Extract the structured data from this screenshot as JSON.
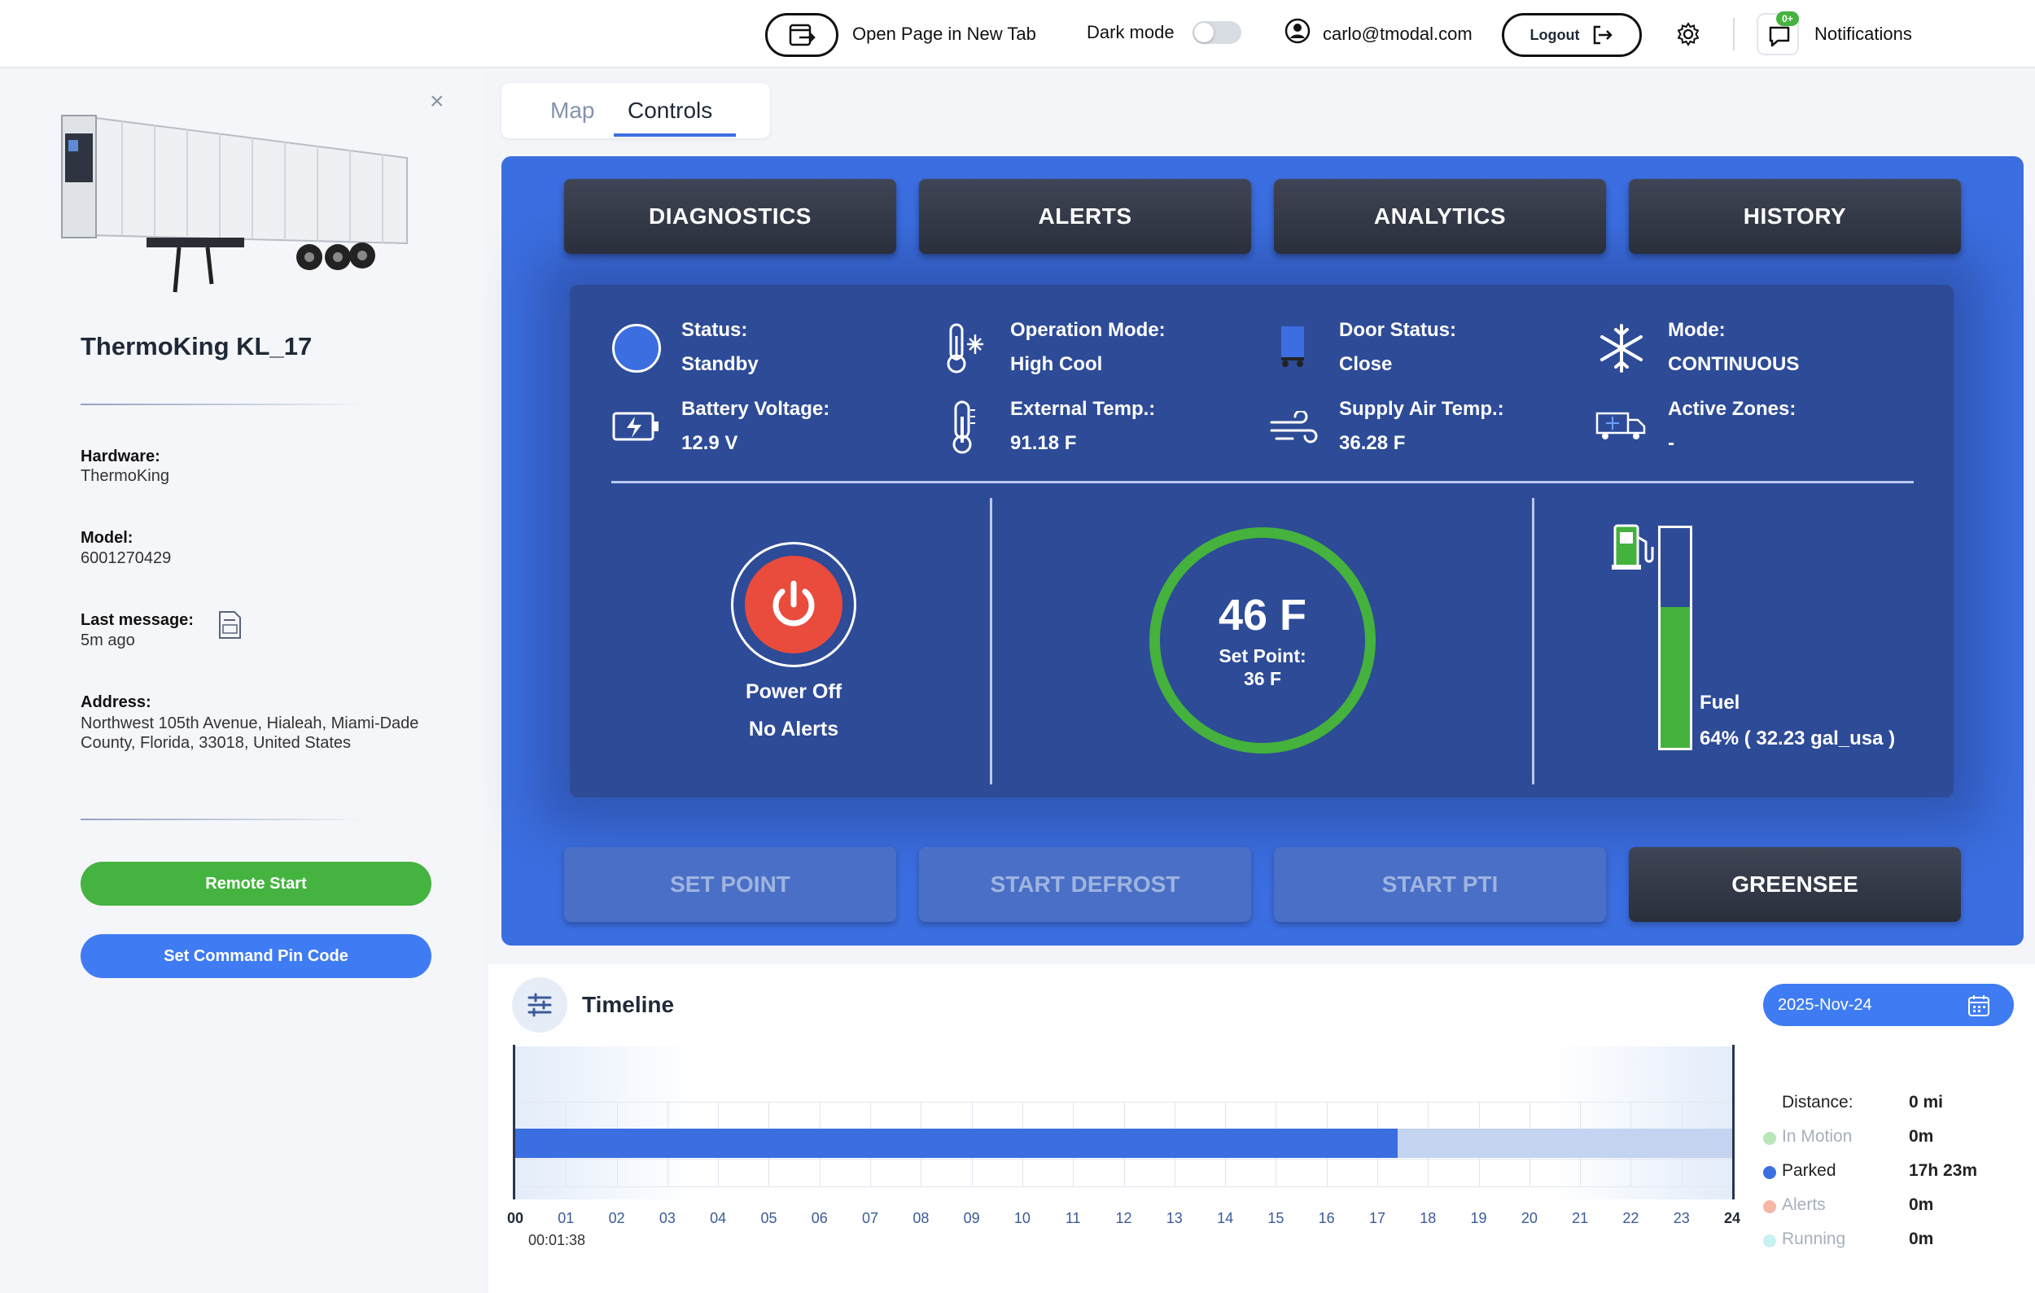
{
  "topbar": {
    "open_page_label": "Open Page in New Tab",
    "dark_mode_label": "Dark mode",
    "user_email": "carlo@tmodal.com",
    "logout_label": "Logout",
    "notifications_badge": "0+",
    "notifications_label": "Notifications"
  },
  "sidebar": {
    "asset_name": "ThermoKing KL_17",
    "fields": [
      {
        "label": "Hardware:",
        "value": "ThermoKing"
      },
      {
        "label": "Model:",
        "value": "6001270429"
      },
      {
        "label": "Last message:",
        "value": "5m ago"
      },
      {
        "label": "Address:",
        "value": "Northwest 105th Avenue, Hialeah, Miami-Dade County, Florida, 33018, United States"
      }
    ],
    "remote_start_label": "Remote Start",
    "pin_code_label": "Set Command Pin Code"
  },
  "tabs": [
    {
      "label": "Map",
      "active": false
    },
    {
      "label": "Controls",
      "active": true
    }
  ],
  "controls": {
    "top_buttons": [
      "DIAGNOSTICS",
      "ALERTS",
      "ANALYTICS",
      "HISTORY"
    ],
    "info": [
      {
        "label": "Status:",
        "value": "Standby",
        "icon": "status-circle-icon"
      },
      {
        "label": "Operation Mode:",
        "value": "High Cool",
        "icon": "thermometer-snow-icon"
      },
      {
        "label": "Door Status:",
        "value": "Close",
        "icon": "trailer-door-icon"
      },
      {
        "label": "Mode:",
        "value": "CONTINUOUS",
        "icon": "snowflake-icon"
      },
      {
        "label": "Battery Voltage:",
        "value": "12.9 V",
        "icon": "battery-charging-icon"
      },
      {
        "label": "External Temp.:",
        "value": "91.18 F",
        "icon": "thermometer-icon"
      },
      {
        "label": "Supply Air Temp.:",
        "value": "36.28 F",
        "icon": "wind-icon"
      },
      {
        "label": "Active Zones:",
        "value": "-",
        "icon": "reefer-truck-icon"
      }
    ],
    "power_label": "Power Off",
    "alerts_label": "No Alerts",
    "temperature": "46 F",
    "set_point_label": "Set Point:",
    "set_point_value": "36 F",
    "fuel_label": "Fuel",
    "fuel_value": "64% ( 32.23 gal_usa )",
    "fuel_fraction": 0.64,
    "bottom_buttons": [
      "SET POINT",
      "START DEFROST",
      "START PTI",
      "GREENSEE"
    ],
    "colors": {
      "panel": "#3b6ee0",
      "inner": "#2d4b97",
      "ring": "#44b23c",
      "power": "#e94b3c"
    }
  },
  "timeline": {
    "title": "Timeline",
    "date": "2025-Nov-24",
    "hours": [
      "00",
      "01",
      "02",
      "03",
      "04",
      "05",
      "06",
      "07",
      "08",
      "09",
      "10",
      "11",
      "12",
      "13",
      "14",
      "15",
      "16",
      "17",
      "18",
      "19",
      "20",
      "21",
      "22",
      "23",
      "24"
    ],
    "cursor_time": "00:01:38",
    "parked_until_hour": 17.4,
    "stats": [
      {
        "label": "Distance:",
        "value": "0 mi",
        "color": ""
      },
      {
        "label": "In Motion",
        "value": "0m",
        "color": "#b8e6b8"
      },
      {
        "label": "Parked",
        "value": "17h 23m",
        "color": "#3b6ee0"
      },
      {
        "label": "Alerts",
        "value": "0m",
        "color": "#f5b7a6"
      },
      {
        "label": "Running",
        "value": "0m",
        "color": "#c8f1f3"
      }
    ]
  }
}
